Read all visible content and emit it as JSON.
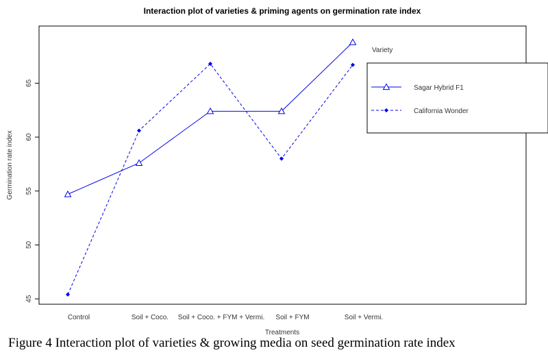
{
  "colors": {
    "series": "#0000ee",
    "axis": "#000000",
    "text": "#333333"
  },
  "caption": "Figure 4 Interaction plot of varieties & growing media on seed germination rate index",
  "chart_data": {
    "type": "line",
    "title": "Interaction plot of varieties & priming agents on germination rate index",
    "xlabel": "Treatments",
    "ylabel": "Germination rate index",
    "categories": [
      "Control",
      "Soil + Coco.",
      "Soil + Coco. + FYM + Vermi.",
      "Soil + FYM",
      "Soil + Vermi."
    ],
    "ylim": [
      44.5,
      70.3
    ],
    "yticks": [
      45,
      50,
      55,
      60,
      65
    ],
    "grid": false,
    "legend": {
      "title": "Variety",
      "placement": "top-right",
      "entries": [
        "Sagar Hybrid F1",
        "California Wonder"
      ]
    },
    "series": [
      {
        "name": "Sagar Hybrid F1",
        "marker": "triangle-open",
        "line": "solid",
        "values": [
          54.7,
          57.6,
          62.4,
          62.4,
          68.8
        ]
      },
      {
        "name": "California Wonder",
        "marker": "diamond-filled",
        "line": "dashed",
        "values": [
          45.4,
          60.6,
          66.8,
          58.0,
          66.7
        ]
      }
    ]
  }
}
